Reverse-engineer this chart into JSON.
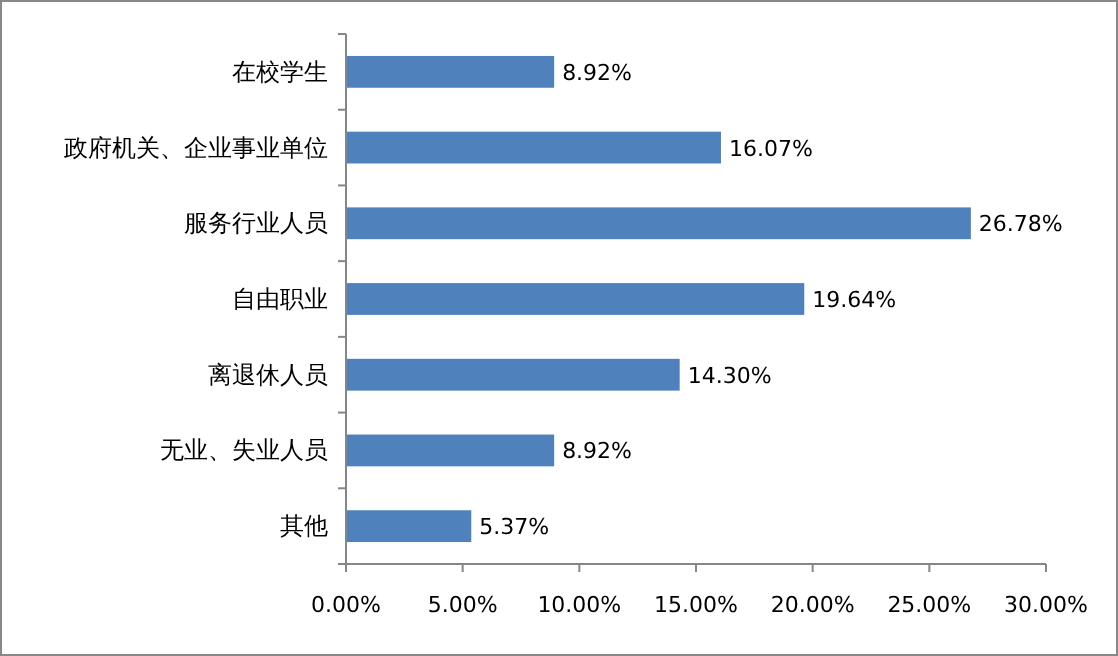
{
  "chart_data": {
    "type": "bar",
    "orientation": "horizontal",
    "categories": [
      "在校学生",
      "政府机关、企业事业单位",
      "服务行业人员",
      "自由职业",
      "离退休人员",
      "无业、失业人员",
      "其他"
    ],
    "values": [
      8.92,
      16.07,
      26.78,
      19.64,
      14.3,
      8.92,
      5.37
    ],
    "value_labels": [
      "8.92%",
      "16.07%",
      "26.78%",
      "19.64%",
      "14.30%",
      "8.92%",
      "5.37%"
    ],
    "color": "#4f81bd",
    "xlim": [
      0,
      30
    ],
    "xticks": [
      {
        "value": 0,
        "label": "0.00%"
      },
      {
        "value": 5,
        "label": "5.00%"
      },
      {
        "value": 10,
        "label": "10.00%"
      },
      {
        "value": 15,
        "label": "15.00%"
      },
      {
        "value": 20,
        "label": "20.00%"
      },
      {
        "value": 25,
        "label": "25.00%"
      },
      {
        "value": 30,
        "label": "30.00%"
      }
    ]
  }
}
